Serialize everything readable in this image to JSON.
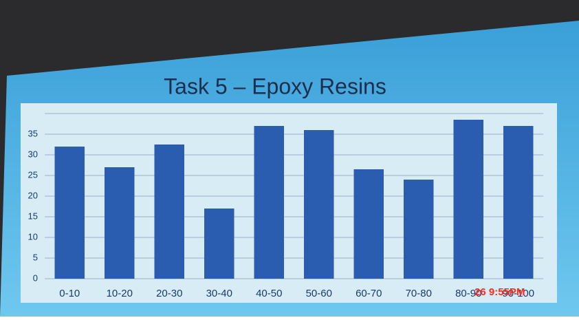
{
  "chart_data": {
    "type": "bar",
    "title": "Task 5 – Epoxy Resins",
    "categories": [
      "0-10",
      "10-20",
      "20-30",
      "30-40",
      "40-50",
      "50-60",
      "60-70",
      "70-80",
      "80-90",
      "90-100"
    ],
    "values": [
      32,
      27,
      32.5,
      17,
      37,
      36,
      26.5,
      24,
      38.5,
      37
    ],
    "color": "#2a5db0",
    "ylim": [
      0,
      40
    ],
    "yticks": [
      0,
      5,
      10,
      15,
      20,
      25,
      30,
      35
    ],
    "grid": true
  },
  "timestamp": "26  9:55PM"
}
